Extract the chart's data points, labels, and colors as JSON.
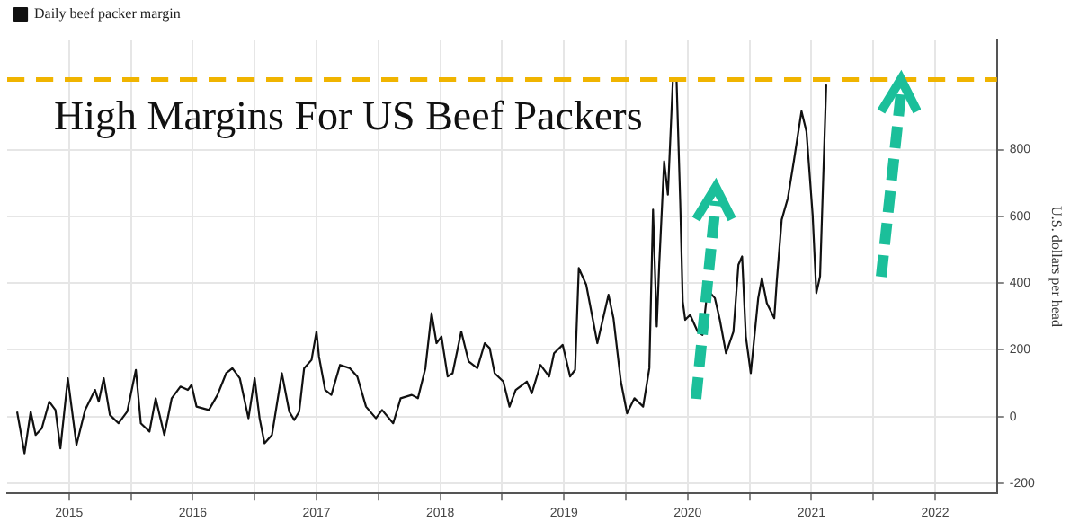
{
  "chart_data": {
    "type": "line",
    "title": "High Margins For US Beef Packers",
    "ylabel": "U.S. dollars per head",
    "series": [
      {
        "name": "Daily beef packer margin",
        "color": "#111111",
        "x": [
          2015.08,
          2015.14,
          2015.19,
          2015.23,
          2015.28,
          2015.34,
          2015.39,
          2015.43,
          2015.49,
          2015.56,
          2015.63,
          2015.71,
          2015.74,
          2015.78,
          2015.83,
          2015.9,
          2015.97,
          2016.04,
          2016.08,
          2016.15,
          2016.2,
          2016.27,
          2016.33,
          2016.4,
          2016.46,
          2016.49,
          2016.53,
          2016.63,
          2016.7,
          2016.77,
          2016.82,
          2016.88,
          2016.95,
          2017.0,
          2017.04,
          2017.08,
          2017.14,
          2017.22,
          2017.28,
          2017.32,
          2017.36,
          2017.4,
          2017.46,
          2017.5,
          2017.52,
          2017.57,
          2017.62,
          2017.69,
          2017.77,
          2017.83,
          2017.9,
          2017.98,
          2018.03,
          2018.12,
          2018.18,
          2018.27,
          2018.32,
          2018.38,
          2018.43,
          2018.47,
          2018.51,
          2018.56,
          2018.6,
          2018.67,
          2018.73,
          2018.8,
          2018.86,
          2018.9,
          2018.94,
          2019.01,
          2019.06,
          2019.11,
          2019.2,
          2019.24,
          2019.31,
          2019.38,
          2019.42,
          2019.49,
          2019.55,
          2019.59,
          2019.62,
          2019.68,
          2019.77,
          2019.86,
          2019.9,
          2019.96,
          2020.01,
          2020.07,
          2020.14,
          2020.19,
          2020.22,
          2020.25,
          2020.27,
          2020.31,
          2020.34,
          2020.38,
          2020.41,
          2020.44,
          2020.46,
          2020.48,
          2020.52,
          2020.58,
          2020.62,
          2020.66,
          2020.72,
          2020.76,
          2020.81,
          2020.87,
          2020.91,
          2020.94,
          2020.97,
          2021.01,
          2021.07,
          2021.1,
          2021.14,
          2021.2,
          2021.22,
          2021.26,
          2021.31,
          2021.36,
          2021.42,
          2021.46,
          2021.51,
          2021.54,
          2021.57,
          2021.62
        ],
        "values": [
          15,
          -110,
          15,
          -55,
          -35,
          45,
          20,
          -95,
          115,
          -85,
          20,
          80,
          45,
          115,
          5,
          -20,
          15,
          140,
          -20,
          -45,
          55,
          -55,
          55,
          90,
          80,
          95,
          30,
          20,
          65,
          130,
          145,
          115,
          -5,
          115,
          -5,
          -80,
          -55,
          130,
          15,
          -10,
          15,
          145,
          170,
          255,
          180,
          80,
          65,
          155,
          145,
          120,
          30,
          -5,
          20,
          -20,
          55,
          65,
          55,
          145,
          310,
          220,
          240,
          120,
          130,
          255,
          165,
          145,
          220,
          205,
          130,
          105,
          30,
          80,
          105,
          70,
          155,
          120,
          190,
          215,
          120,
          140,
          445,
          395,
          220,
          365,
          295,
          105,
          10,
          55,
          30,
          145,
          620,
          270,
          455,
          765,
          665,
          1005,
          1010,
          640,
          345,
          290,
          305,
          255,
          245,
          380,
          355,
          290,
          190,
          255,
          455,
          480,
          240,
          130,
          355,
          415,
          340,
          295,
          405,
          590,
          655,
          770,
          915,
          855,
          605,
          370,
          420,
          995
        ]
      }
    ],
    "xlim": [
      2015,
      2023
    ],
    "xticks": [
      {
        "value": 2015.5,
        "label": "2015"
      },
      {
        "value": 2016,
        "label": null
      },
      {
        "value": 2016.5,
        "label": "2016"
      },
      {
        "value": 2017,
        "label": null
      },
      {
        "value": 2017.5,
        "label": "2017"
      },
      {
        "value": 2018,
        "label": null
      },
      {
        "value": 2018.5,
        "label": "2018"
      },
      {
        "value": 2019,
        "label": null
      },
      {
        "value": 2019.5,
        "label": "2019"
      },
      {
        "value": 2020,
        "label": null
      },
      {
        "value": 2020.5,
        "label": "2020"
      },
      {
        "value": 2021,
        "label": null
      },
      {
        "value": 2021.5,
        "label": "2021"
      },
      {
        "value": 2022,
        "label": null
      },
      {
        "value": 2022.5,
        "label": "2022"
      }
    ],
    "ylim": [
      -230,
      1130
    ],
    "yticks": [
      -200,
      0,
      200,
      400,
      600,
      800
    ],
    "ref_lines": [
      {
        "axis": "y",
        "value": 1010,
        "color": "#f0b400",
        "line_style": "dashed"
      }
    ],
    "grid": true,
    "legend": "top left",
    "marker": "none",
    "line_style": "solid"
  }
}
